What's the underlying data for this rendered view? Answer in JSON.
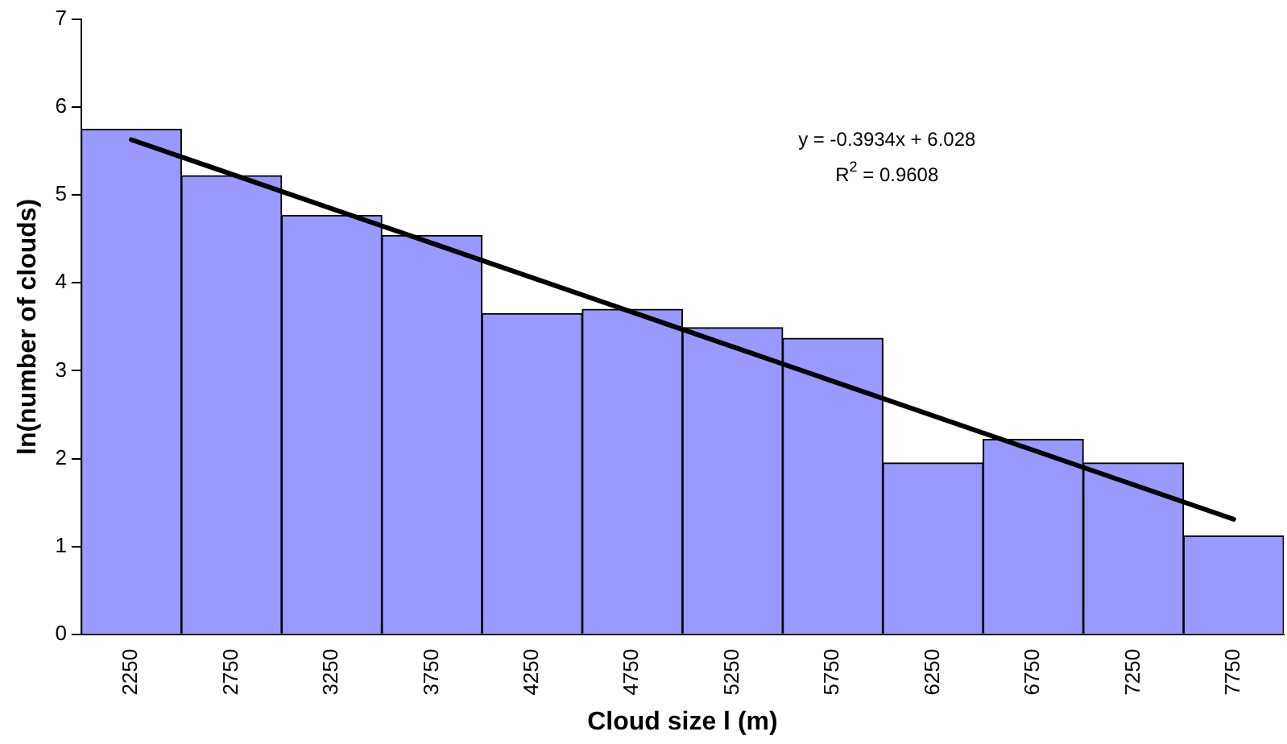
{
  "chart_data": {
    "type": "bar",
    "xlabel": "Cloud size l (m)",
    "ylabel": "ln(number of clouds)",
    "categories": [
      "2250",
      "2750",
      "3250",
      "3750",
      "4250",
      "4750",
      "5250",
      "5750",
      "6250",
      "6750",
      "7250",
      "7750"
    ],
    "series": [
      {
        "color": "#9999ff",
        "values": [
          5.75,
          5.22,
          4.77,
          4.54,
          3.65,
          3.7,
          3.49,
          3.37,
          1.95,
          2.22,
          1.95,
          1.12
        ]
      },
      {
        "type": "line",
        "color": "#000000",
        "values": [
          5.63,
          null,
          null,
          null,
          null,
          null,
          null,
          null,
          null,
          null,
          null,
          1.31
        ]
      }
    ],
    "ylim": [
      0,
      7
    ],
    "yticks": [
      0,
      1,
      2,
      3,
      4,
      5,
      6,
      7
    ],
    "grid": false,
    "legend": false,
    "annotations": [
      "y = -0.3934x + 6.028",
      "R$^{2}$ = 0.9608"
    ]
  }
}
